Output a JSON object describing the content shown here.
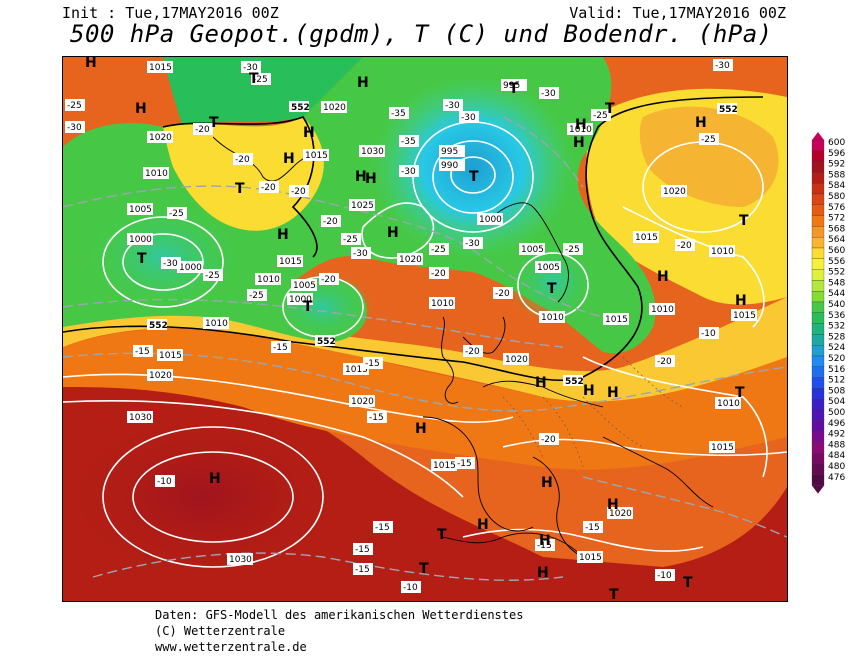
{
  "header": {
    "init": "Init : Tue,17MAY2016 00Z",
    "valid": "Valid: Tue,17MAY2016 00Z",
    "title": "500 hPa Geopot.(gpdm), T (C) und Bodendr. (hPa)"
  },
  "footer": {
    "line1": "Daten: GFS-Modell des amerikanischen Wetterdienstes",
    "line2": "(C) Wetterzentrale",
    "line3": "www.wetterzentrale.de"
  },
  "legend": {
    "values": [
      "600",
      "596",
      "592",
      "588",
      "584",
      "580",
      "576",
      "572",
      "568",
      "564",
      "560",
      "556",
      "552",
      "548",
      "544",
      "540",
      "536",
      "532",
      "528",
      "524",
      "520",
      "516",
      "512",
      "508",
      "504",
      "500",
      "496",
      "492",
      "488",
      "484",
      "480",
      "476"
    ],
    "colors": [
      "#c8005a",
      "#b40028",
      "#a0141e",
      "#b41e14",
      "#c83214",
      "#dc4614",
      "#e65a14",
      "#f07814",
      "#f59628",
      "#fab432",
      "#fadc32",
      "#f5f03c",
      "#dcf03c",
      "#b4e63c",
      "#82dc32",
      "#46c846",
      "#28be5a",
      "#1eb47d",
      "#1eaaa0",
      "#1ea0d2",
      "#1e8cf0",
      "#1e6ef0",
      "#1e50f0",
      "#2832dc",
      "#3c1ec8",
      "#5014b4",
      "#640aa0",
      "#7a0a8c",
      "#8c0a78",
      "#780a64",
      "#640a50",
      "#500a46"
    ]
  },
  "map_labels": {
    "pressure": [
      "1015",
      "1020",
      "1010",
      "1005",
      "1000",
      "1000",
      "1015",
      "1010",
      "1005",
      "1000",
      "1010",
      "1015",
      "1020",
      "1030",
      "1030",
      "1020",
      "1015",
      "1030",
      "1025",
      "1020",
      "1010",
      "995",
      "995",
      "990",
      "1000",
      "1005",
      "1005",
      "1010",
      "1015",
      "1020",
      "1010",
      "1015",
      "1020",
      "1010",
      "1015",
      "1010",
      "1015",
      "1020",
      "1015",
      "1010",
      "1015",
      "1020",
      "1015"
    ],
    "temperature": [
      "-25",
      "-30",
      "-25",
      "-20",
      "-30",
      "-25",
      "-20",
      "-20",
      "-30",
      "-25",
      "-20",
      "-25",
      "-20",
      "-25",
      "-30",
      "-35",
      "-35",
      "-30",
      "-30",
      "-30",
      "-30",
      "-30",
      "-25",
      "-20",
      "-25",
      "-25",
      "-25",
      "-30",
      "-20",
      "-15",
      "-20",
      "-15",
      "-15",
      "-20",
      "-20",
      "-20",
      "-15",
      "-15",
      "-15",
      "-10",
      "-15",
      "-15",
      "-15",
      "-10",
      "-10",
      "-15",
      "-10",
      "-20"
    ],
    "geopotential": [
      "552",
      "552",
      "552",
      "552",
      "552",
      "552"
    ],
    "high_symbol": "H",
    "low_symbol": "T"
  }
}
